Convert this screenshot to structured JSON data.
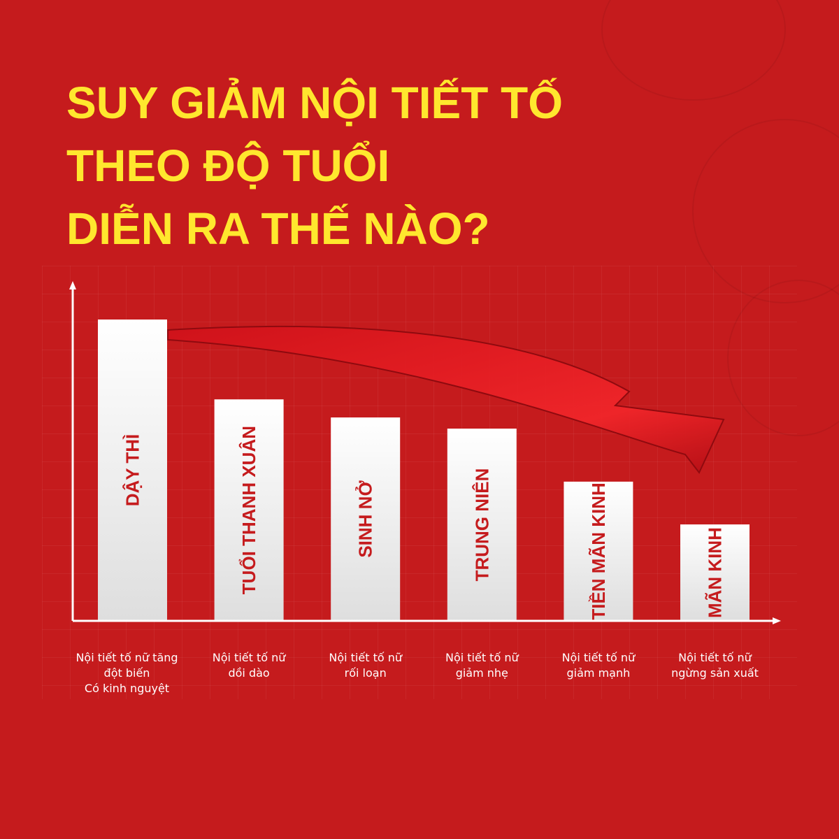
{
  "title": {
    "line1": "SUY GIẢM NỘI TIẾT TỐ",
    "line2": "THEO ĐỘ TUỔI",
    "line3": "DIỄN RA THẾ NÀO?"
  },
  "colors": {
    "background": "#c51b1d",
    "title": "#ffe72e",
    "bar": "#f2f2f2",
    "bar_label": "#c51b1d",
    "arrow": "#e0161b"
  },
  "chart_data": {
    "type": "bar",
    "title": "",
    "xlabel": "",
    "ylabel": "",
    "ylim": [
      0,
      100
    ],
    "grid": true,
    "categories": [
      "DẬY THÌ",
      "TUỔI THANH XUÂN",
      "SINH NỞ",
      "TRUNG NIÊN",
      "TIỀN MÃN KINH",
      "MÃN KINH"
    ],
    "values": [
      100,
      73.5,
      67.5,
      63.8,
      46.2,
      32.0
    ],
    "captions": [
      [
        "Nội tiết tố nữ tăng",
        "đột biến",
        "Có kinh nguyệt"
      ],
      [
        "Nội tiết tố nữ",
        "dồi dào"
      ],
      [
        "Nội tiết tố nữ",
        "rối loạn"
      ],
      [
        "Nội tiết tố nữ",
        "giảm nhẹ"
      ],
      [
        "Nội tiết tố nữ",
        "giảm mạnh"
      ],
      [
        "Nội tiết tố nữ",
        "ngừng sản xuất"
      ]
    ],
    "annotation": "downward-trend-arrow"
  }
}
